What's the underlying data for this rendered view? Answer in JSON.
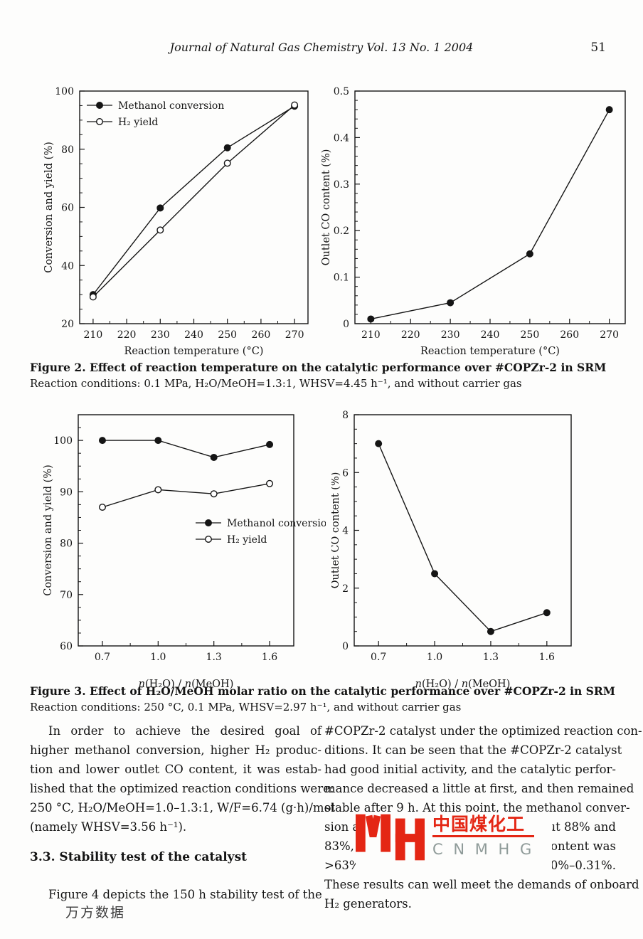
{
  "page": {
    "header_title": "Journal of Natural Gas Chemistry Vol. 13 No. 1  2004",
    "page_number": "51",
    "bottom_watermark": "万方数据"
  },
  "figure2": {
    "caption_title": "Figure 2.  Effect of reaction temperature on the catalytic performance over #COPZr-2 in SRM",
    "caption_conditions": "Reaction conditions: 0.1 MPa, H₂O/MeOH=1.3:1, WHSV=4.45 h⁻¹, and without carrier gas"
  },
  "figure3": {
    "caption_title": "Figure 3.  Effect of H₂O/MeOH molar ratio on the catalytic performance over #COPZr-2 in SRM",
    "caption_conditions": "Reaction conditions: 250 °C, 0.1 MPa, WHSV=2.97 h⁻¹, and without carrier gas"
  },
  "chart_data": [
    {
      "id": "fig2-left",
      "type": "line",
      "xlabel": "Reaction temperature (°C)",
      "ylabel": "Conversion and yield (%)",
      "x": [
        210,
        230,
        250,
        270
      ],
      "xlim": [
        206,
        274
      ],
      "ylim": [
        20,
        100
      ],
      "x_major_ticks": [
        210,
        220,
        230,
        240,
        250,
        260,
        270
      ],
      "x_tick_labels": [
        "210",
        "220",
        "230",
        "240",
        "250",
        "260",
        "270"
      ],
      "x_minor_ticks": [
        215,
        225,
        235,
        245,
        255,
        265
      ],
      "y_major_ticks": [
        20,
        40,
        60,
        80,
        100
      ],
      "y_tick_labels": [
        "20",
        "40",
        "60",
        "80",
        "100"
      ],
      "y_minor_ticks": [
        25,
        30,
        35,
        45,
        50,
        55,
        65,
        70,
        75,
        85,
        90,
        95
      ],
      "series": [
        {
          "name": "Methanol conversion",
          "marker": "filled-circle",
          "values": [
            30,
            59.8,
            80.5,
            94.8
          ]
        },
        {
          "name": "H₂ yield",
          "marker": "open-circle",
          "values": [
            29.2,
            52.2,
            75.2,
            95.2
          ]
        }
      ],
      "legend_position": "top-left",
      "grid": false
    },
    {
      "id": "fig2-right",
      "type": "line",
      "xlabel": "Reaction temperature (°C)",
      "ylabel": "Outlet CO content (%)",
      "x": [
        210,
        230,
        250,
        270
      ],
      "xlim": [
        206,
        274
      ],
      "ylim": [
        0,
        0.5
      ],
      "x_major_ticks": [
        210,
        220,
        230,
        240,
        250,
        260,
        270
      ],
      "x_tick_labels": [
        "210",
        "220",
        "230",
        "240",
        "250",
        "260",
        "270"
      ],
      "x_minor_ticks": [
        215,
        225,
        235,
        245,
        255,
        265
      ],
      "y_major_ticks": [
        0,
        0.1,
        0.2,
        0.3,
        0.4,
        0.5
      ],
      "y_tick_labels": [
        "0",
        "0.1",
        "0.2",
        "0.3",
        "0.4",
        "0.5"
      ],
      "y_minor_ticks": [
        0.02,
        0.04,
        0.06,
        0.08,
        0.12,
        0.14,
        0.16,
        0.18,
        0.22,
        0.24,
        0.26,
        0.28,
        0.32,
        0.34,
        0.36,
        0.38,
        0.42,
        0.44,
        0.46,
        0.48
      ],
      "series": [
        {
          "name": "Outlet CO content",
          "marker": "filled-circle",
          "values": [
            0.01,
            0.045,
            0.15,
            0.46
          ]
        }
      ],
      "legend_position": "none",
      "grid": false
    },
    {
      "id": "fig3-left",
      "type": "line",
      "xlabel": "*n*(H₂O) / *n*(MeOH)",
      "ylabel": "Conversion and yield (%)",
      "x": [
        0.7,
        1.0,
        1.3,
        1.6
      ],
      "xlim": [
        0.57,
        1.73
      ],
      "ylim": [
        60,
        105
      ],
      "x_major_ticks": [
        0.7,
        1.0,
        1.3,
        1.6
      ],
      "x_tick_labels": [
        "0.7",
        "1.0",
        "1.3",
        "1.6"
      ],
      "x_minor_ticks": [
        0.85,
        1.15,
        1.45
      ],
      "y_major_ticks": [
        60,
        70,
        80,
        90,
        100
      ],
      "y_tick_labels": [
        "60",
        "70",
        "80",
        "90",
        "100"
      ],
      "y_minor_ticks": [
        62.5,
        65,
        67.5,
        72.5,
        75,
        77.5,
        82.5,
        85,
        87.5,
        92.5,
        95,
        97.5,
        102.5
      ],
      "series": [
        {
          "name": "Methanol conversion",
          "marker": "filled-circle",
          "values": [
            100,
            100,
            96.7,
            99.2
          ]
        },
        {
          "name": "H₂ yield",
          "marker": "open-circle",
          "values": [
            87,
            90.4,
            89.6,
            91.6
          ]
        }
      ],
      "legend_position": "mid-right",
      "grid": false
    },
    {
      "id": "fig3-right",
      "type": "line",
      "xlabel": "*n*(H₂O) / *n*(MeOH)",
      "ylabel": "Outlet CO content (%)",
      "x": [
        0.7,
        1.0,
        1.3,
        1.6
      ],
      "xlim": [
        0.57,
        1.73
      ],
      "ylim": [
        0,
        8
      ],
      "x_major_ticks": [
        0.7,
        1.0,
        1.3,
        1.6
      ],
      "x_tick_labels": [
        "0.7",
        "1.0",
        "1.3",
        "1.6"
      ],
      "x_minor_ticks": [
        0.85,
        1.15,
        1.45
      ],
      "y_major_ticks": [
        0,
        2,
        4,
        6,
        8
      ],
      "y_tick_labels": [
        "0",
        "2",
        "4",
        "6",
        "8"
      ],
      "y_minor_ticks": [
        0.5,
        1,
        1.5,
        2.5,
        3,
        3.5,
        4.5,
        5,
        5.5,
        6.5,
        7,
        7.5
      ],
      "series": [
        {
          "name": "Outlet CO content",
          "marker": "filled-circle",
          "values": [
            7.0,
            2.5,
            0.5,
            1.15
          ]
        }
      ],
      "legend_position": "none",
      "grid": false
    }
  ],
  "body": {
    "left_column": {
      "para1_lines": [
        {
          "text": "In order to achieve the desired goal of",
          "indent": true
        },
        {
          "text": "higher methanol conversion, higher H₂ produc-"
        },
        {
          "text": "tion and lower outlet CO content, it was estab-"
        },
        {
          "text": "lished that the optimized reaction conditions were:"
        },
        {
          "text": "250 °C, H₂O/MeOH=1.0–1.3:1, W/F=6.74 (g·h)/mol"
        },
        {
          "text": "(namely WHSV=3.56 h⁻¹).",
          "end": true
        }
      ],
      "heading": "3.3.  Stability test of the catalyst",
      "para2_lines": [
        {
          "text": "Figure 4 depicts the 150 h stability test of the",
          "indent": true
        }
      ]
    },
    "right_column": {
      "lines": [
        {
          "text": "#COPZr-2 catalyst under the optimized reaction con-"
        },
        {
          "text": "ditions.  It can be seen that the #COPZr-2 catalyst"
        },
        {
          "text": "had good initial activity, and the catalytic perfor-"
        },
        {
          "text": "mance decreased a little at first, and then remained"
        },
        {
          "text": "stable after 9 h.  At this point, the methanol conver-"
        },
        {
          "text": "sion an",
          "right_text": "t about 88% and"
        },
        {
          "text": "83%, re",
          "right_text": "H₂ content was"
        },
        {
          "text": ">63%,",
          "right_text": "was 0.20%–0.31%."
        },
        {
          "text": "These results can well meet the demands of onboard"
        },
        {
          "text": "H₂ generators.",
          "end": true
        }
      ]
    }
  },
  "watermark": {
    "cn_text": "中国煤化工",
    "latin_text": "C N M H G",
    "red": "#e42614",
    "gray": "#8f9b99"
  }
}
